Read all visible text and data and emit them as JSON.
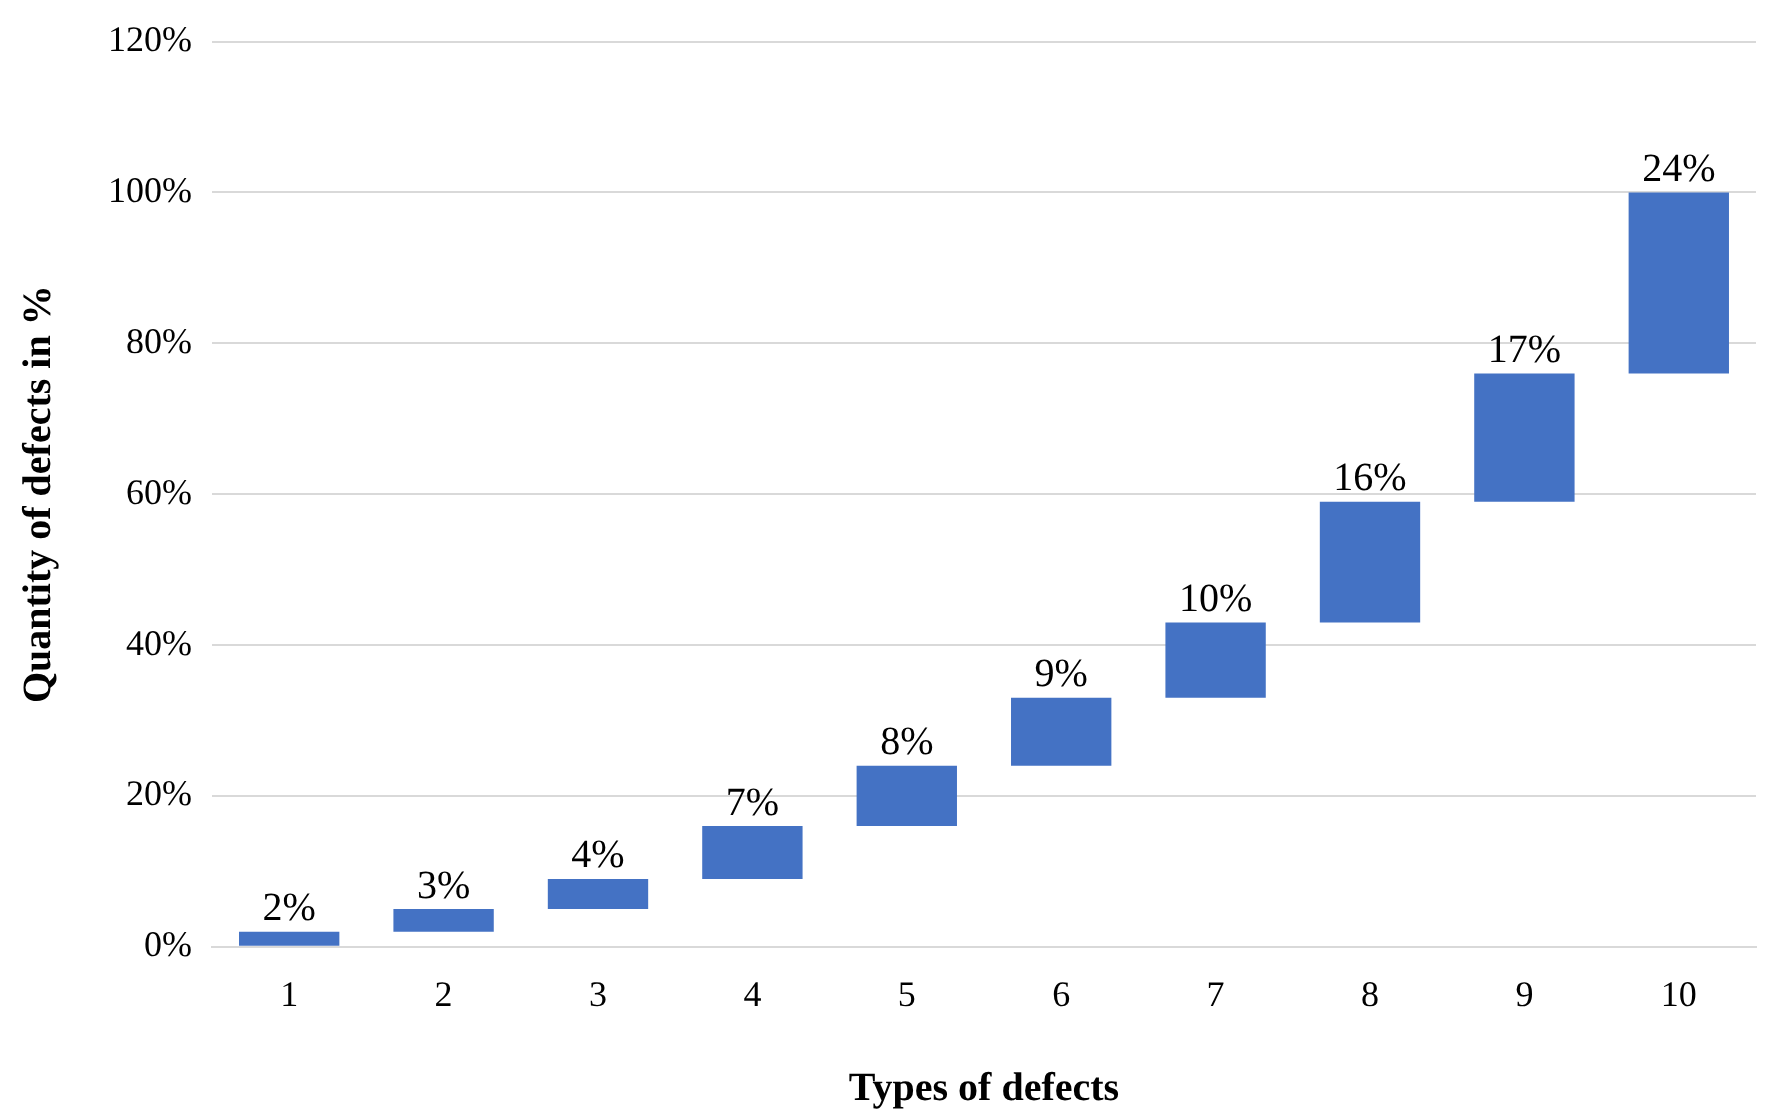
{
  "chart_data": {
    "type": "bar",
    "xlabel": "Types of defects",
    "ylabel": "Quantity of defects in %",
    "categories": [
      "1",
      "2",
      "3",
      "4",
      "5",
      "6",
      "7",
      "8",
      "9",
      "10"
    ],
    "values": [
      2,
      3,
      4,
      7,
      8,
      9,
      10,
      16,
      17,
      24
    ],
    "base": [
      0,
      2,
      5,
      9,
      16,
      24,
      33,
      43,
      59,
      76
    ],
    "value_labels": [
      "2%",
      "3%",
      "4%",
      "7%",
      "8%",
      "9%",
      "10%",
      "16%",
      "17%",
      "24%"
    ],
    "color": "#4472c4",
    "ylim": [
      0,
      120
    ],
    "yticks": [
      {
        "value": 0,
        "label": "0%"
      },
      {
        "value": 20,
        "label": "20%"
      },
      {
        "value": 40,
        "label": "40%"
      },
      {
        "value": 60,
        "label": "60%"
      },
      {
        "value": 80,
        "label": "80%"
      },
      {
        "value": 100,
        "label": "100%"
      },
      {
        "value": 120,
        "label": "120%"
      }
    ],
    "grid": "y"
  }
}
